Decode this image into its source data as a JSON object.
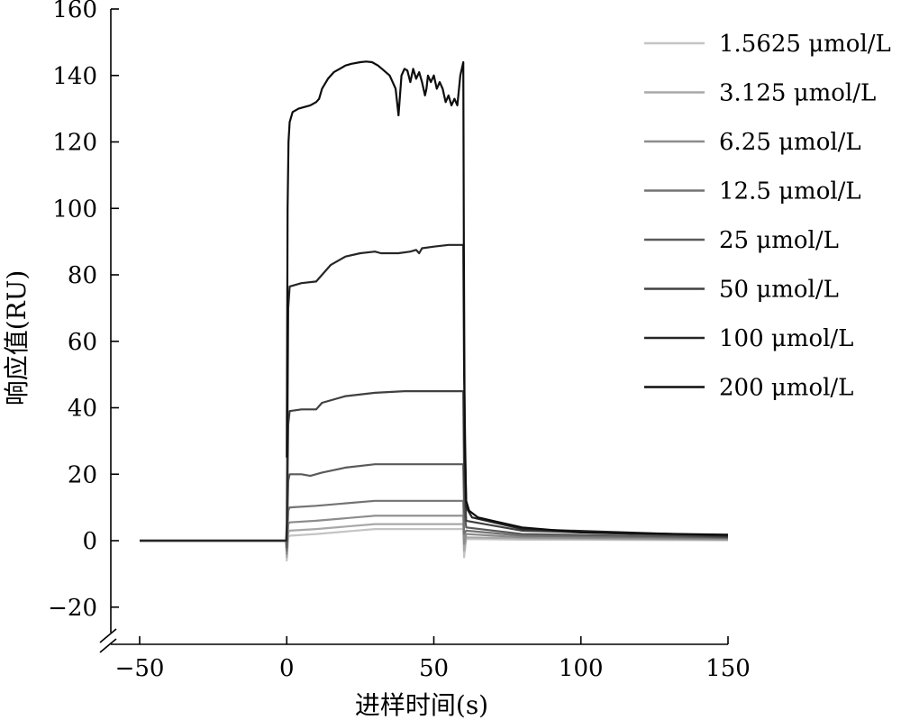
{
  "chart_data": {
    "type": "line",
    "xlabel": "进样时间(s)",
    "ylabel": "响应值(RU)",
    "xlim": [
      -50,
      150
    ],
    "ylim": [
      -20,
      160
    ],
    "x_ticks": [
      "−50",
      "0",
      "50",
      "100",
      "150"
    ],
    "y_ticks": [
      "−20",
      "0",
      "20",
      "40",
      "60",
      "80",
      "100",
      "120",
      "140",
      "160"
    ],
    "axis_break": "y-axis bottom",
    "grid": false,
    "legend_position": "top-right",
    "series": [
      {
        "name": "1.5625 μmol/L",
        "color": "#c4c4c4",
        "points": [
          [
            -50,
            0
          ],
          [
            -0.2,
            0
          ],
          [
            0,
            -6
          ],
          [
            0.5,
            1
          ],
          [
            1,
            1.5
          ],
          [
            10,
            2
          ],
          [
            30,
            3.5
          ],
          [
            60,
            3.5
          ],
          [
            60.3,
            -5
          ],
          [
            61,
            0.5
          ],
          [
            80,
            0.3
          ],
          [
            150,
            0.1
          ]
        ]
      },
      {
        "name": "3.125 μmol/L",
        "color": "#a8a8a8",
        "points": [
          [
            -50,
            0
          ],
          [
            -0.2,
            0
          ],
          [
            0,
            -5
          ],
          [
            0.5,
            2.5
          ],
          [
            1,
            3
          ],
          [
            10,
            3.5
          ],
          [
            30,
            5
          ],
          [
            60,
            5
          ],
          [
            60.3,
            -3
          ],
          [
            61,
            1
          ],
          [
            80,
            0.7
          ],
          [
            150,
            0.3
          ]
        ]
      },
      {
        "name": "6.25 μmol/L",
        "color": "#8c8c8c",
        "points": [
          [
            -50,
            0
          ],
          [
            -0.2,
            0
          ],
          [
            0,
            -4
          ],
          [
            0.5,
            5
          ],
          [
            1,
            5.5
          ],
          [
            10,
            6
          ],
          [
            30,
            7.5
          ],
          [
            60,
            7.5
          ],
          [
            60.3,
            -1
          ],
          [
            61,
            2
          ],
          [
            80,
            1
          ],
          [
            150,
            0.5
          ]
        ]
      },
      {
        "name": "12.5 μmol/L",
        "color": "#737373",
        "points": [
          [
            -50,
            0
          ],
          [
            -0.2,
            0
          ],
          [
            0,
            -3
          ],
          [
            0.5,
            9
          ],
          [
            1,
            10
          ],
          [
            10,
            10.5
          ],
          [
            30,
            12
          ],
          [
            60,
            12
          ],
          [
            60.3,
            2
          ],
          [
            61,
            3
          ],
          [
            80,
            1.5
          ],
          [
            150,
            0.8
          ]
        ]
      },
      {
        "name": "25 μmol/L",
        "color": "#5a5a5a",
        "points": [
          [
            -50,
            0
          ],
          [
            -0.2,
            0
          ],
          [
            0,
            -2
          ],
          [
            0.5,
            18
          ],
          [
            1,
            20
          ],
          [
            5,
            20
          ],
          [
            8,
            19.5
          ],
          [
            12,
            20.5
          ],
          [
            20,
            22
          ],
          [
            30,
            23
          ],
          [
            60,
            23
          ],
          [
            60.3,
            10
          ],
          [
            61,
            4
          ],
          [
            80,
            2
          ],
          [
            150,
            1
          ]
        ]
      },
      {
        "name": "50 μmol/L",
        "color": "#404040",
        "points": [
          [
            -50,
            0
          ],
          [
            -0.2,
            0
          ],
          [
            0,
            0
          ],
          [
            0.5,
            35
          ],
          [
            1,
            39
          ],
          [
            5,
            39.5
          ],
          [
            10,
            39.5
          ],
          [
            12,
            41.5
          ],
          [
            20,
            43.5
          ],
          [
            30,
            44.5
          ],
          [
            40,
            45
          ],
          [
            60,
            45
          ],
          [
            60.3,
            20
          ],
          [
            61,
            6
          ],
          [
            80,
            3
          ],
          [
            150,
            1.2
          ]
        ]
      },
      {
        "name": "100 μmol/L",
        "color": "#262626",
        "points": [
          [
            -50,
            0
          ],
          [
            -0.2,
            0
          ],
          [
            0,
            5
          ],
          [
            0.5,
            70
          ],
          [
            1,
            76.5
          ],
          [
            5,
            77.5
          ],
          [
            10,
            78
          ],
          [
            12,
            80
          ],
          [
            15,
            83
          ],
          [
            20,
            85.5
          ],
          [
            25,
            86.5
          ],
          [
            30,
            87
          ],
          [
            32,
            86.5
          ],
          [
            38,
            86.5
          ],
          [
            42,
            87
          ],
          [
            44,
            87.5
          ],
          [
            45,
            86.5
          ],
          [
            46,
            88
          ],
          [
            50,
            88.5
          ],
          [
            55,
            89
          ],
          [
            60,
            89
          ],
          [
            60.3,
            50
          ],
          [
            61,
            10
          ],
          [
            63,
            7
          ],
          [
            80,
            3.5
          ],
          [
            150,
            1.5
          ]
        ]
      },
      {
        "name": "200 μmol/L",
        "color": "#0d0d0d",
        "points": [
          [
            0,
            25
          ],
          [
            0.3,
            100
          ],
          [
            0.6,
            120
          ],
          [
            1,
            126
          ],
          [
            2,
            129
          ],
          [
            4,
            130
          ],
          [
            8,
            131
          ],
          [
            10,
            132
          ],
          [
            11,
            133
          ],
          [
            12,
            136
          ],
          [
            14,
            139
          ],
          [
            16,
            141
          ],
          [
            18,
            142
          ],
          [
            20,
            143
          ],
          [
            22,
            143.5
          ],
          [
            25,
            144
          ],
          [
            27,
            144.2
          ],
          [
            29,
            144
          ],
          [
            31,
            143
          ],
          [
            33,
            141.5
          ],
          [
            35,
            140
          ],
          [
            36,
            138
          ],
          [
            37,
            136
          ],
          [
            38,
            128
          ],
          [
            39,
            140
          ],
          [
            40,
            142
          ],
          [
            41,
            141.5
          ],
          [
            42,
            138
          ],
          [
            43,
            142
          ],
          [
            44,
            139
          ],
          [
            45,
            141
          ],
          [
            46,
            138
          ],
          [
            47,
            134
          ],
          [
            47.5,
            136
          ],
          [
            48,
            140
          ],
          [
            49,
            138
          ],
          [
            50,
            140
          ],
          [
            51,
            136
          ],
          [
            52,
            138
          ],
          [
            53,
            136
          ],
          [
            54,
            132
          ],
          [
            55,
            134
          ],
          [
            56,
            131
          ],
          [
            57,
            133
          ],
          [
            58,
            131
          ],
          [
            59,
            140
          ],
          [
            60,
            144
          ],
          [
            60.2,
            90
          ],
          [
            60.5,
            30
          ],
          [
            61,
            12
          ],
          [
            62,
            9
          ],
          [
            65,
            7
          ],
          [
            70,
            6
          ],
          [
            80,
            4
          ],
          [
            100,
            2.5
          ],
          [
            150,
            1.8
          ]
        ]
      }
    ]
  }
}
